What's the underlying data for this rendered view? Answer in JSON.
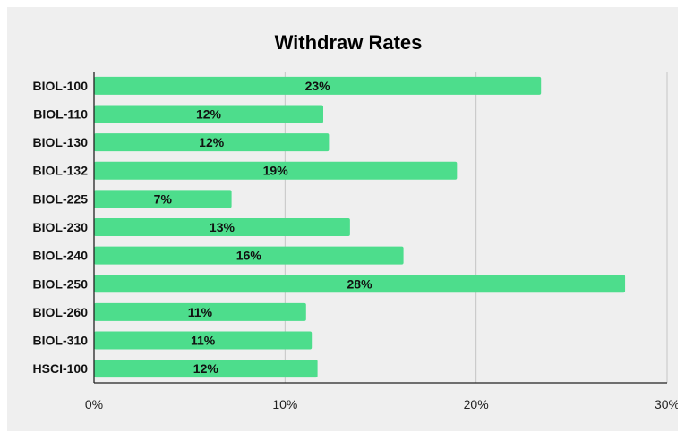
{
  "chart_data": {
    "type": "bar",
    "orientation": "horizontal",
    "title": "Withdraw Rates",
    "xlabel": "",
    "ylabel": "",
    "categories": [
      "BIOL-100",
      "BIOL-110",
      "BIOL-130",
      "BIOL-132",
      "BIOL-225",
      "BIOL-230",
      "BIOL-240",
      "BIOL-250",
      "BIOL-260",
      "BIOL-310",
      "HSCI-100"
    ],
    "values": [
      0.234,
      0.12,
      0.123,
      0.19,
      0.072,
      0.134,
      0.162,
      0.278,
      0.111,
      0.114,
      0.117
    ],
    "data_labels": [
      "23%",
      "12%",
      "12%",
      "19%",
      "7%",
      "13%",
      "16%",
      "28%",
      "11%",
      "11%",
      "12%"
    ],
    "xlim": [
      0,
      0.3
    ],
    "x_ticks": [
      0,
      0.1,
      0.2,
      0.3
    ],
    "x_tick_labels": [
      "0%",
      "10%",
      "20%",
      "30%"
    ],
    "grid": "vertical",
    "legend": "none",
    "colors": {
      "bar": "#4ddd8c",
      "grid": "#c4c4c4",
      "axis": "#222222",
      "background": "#efefef"
    }
  }
}
